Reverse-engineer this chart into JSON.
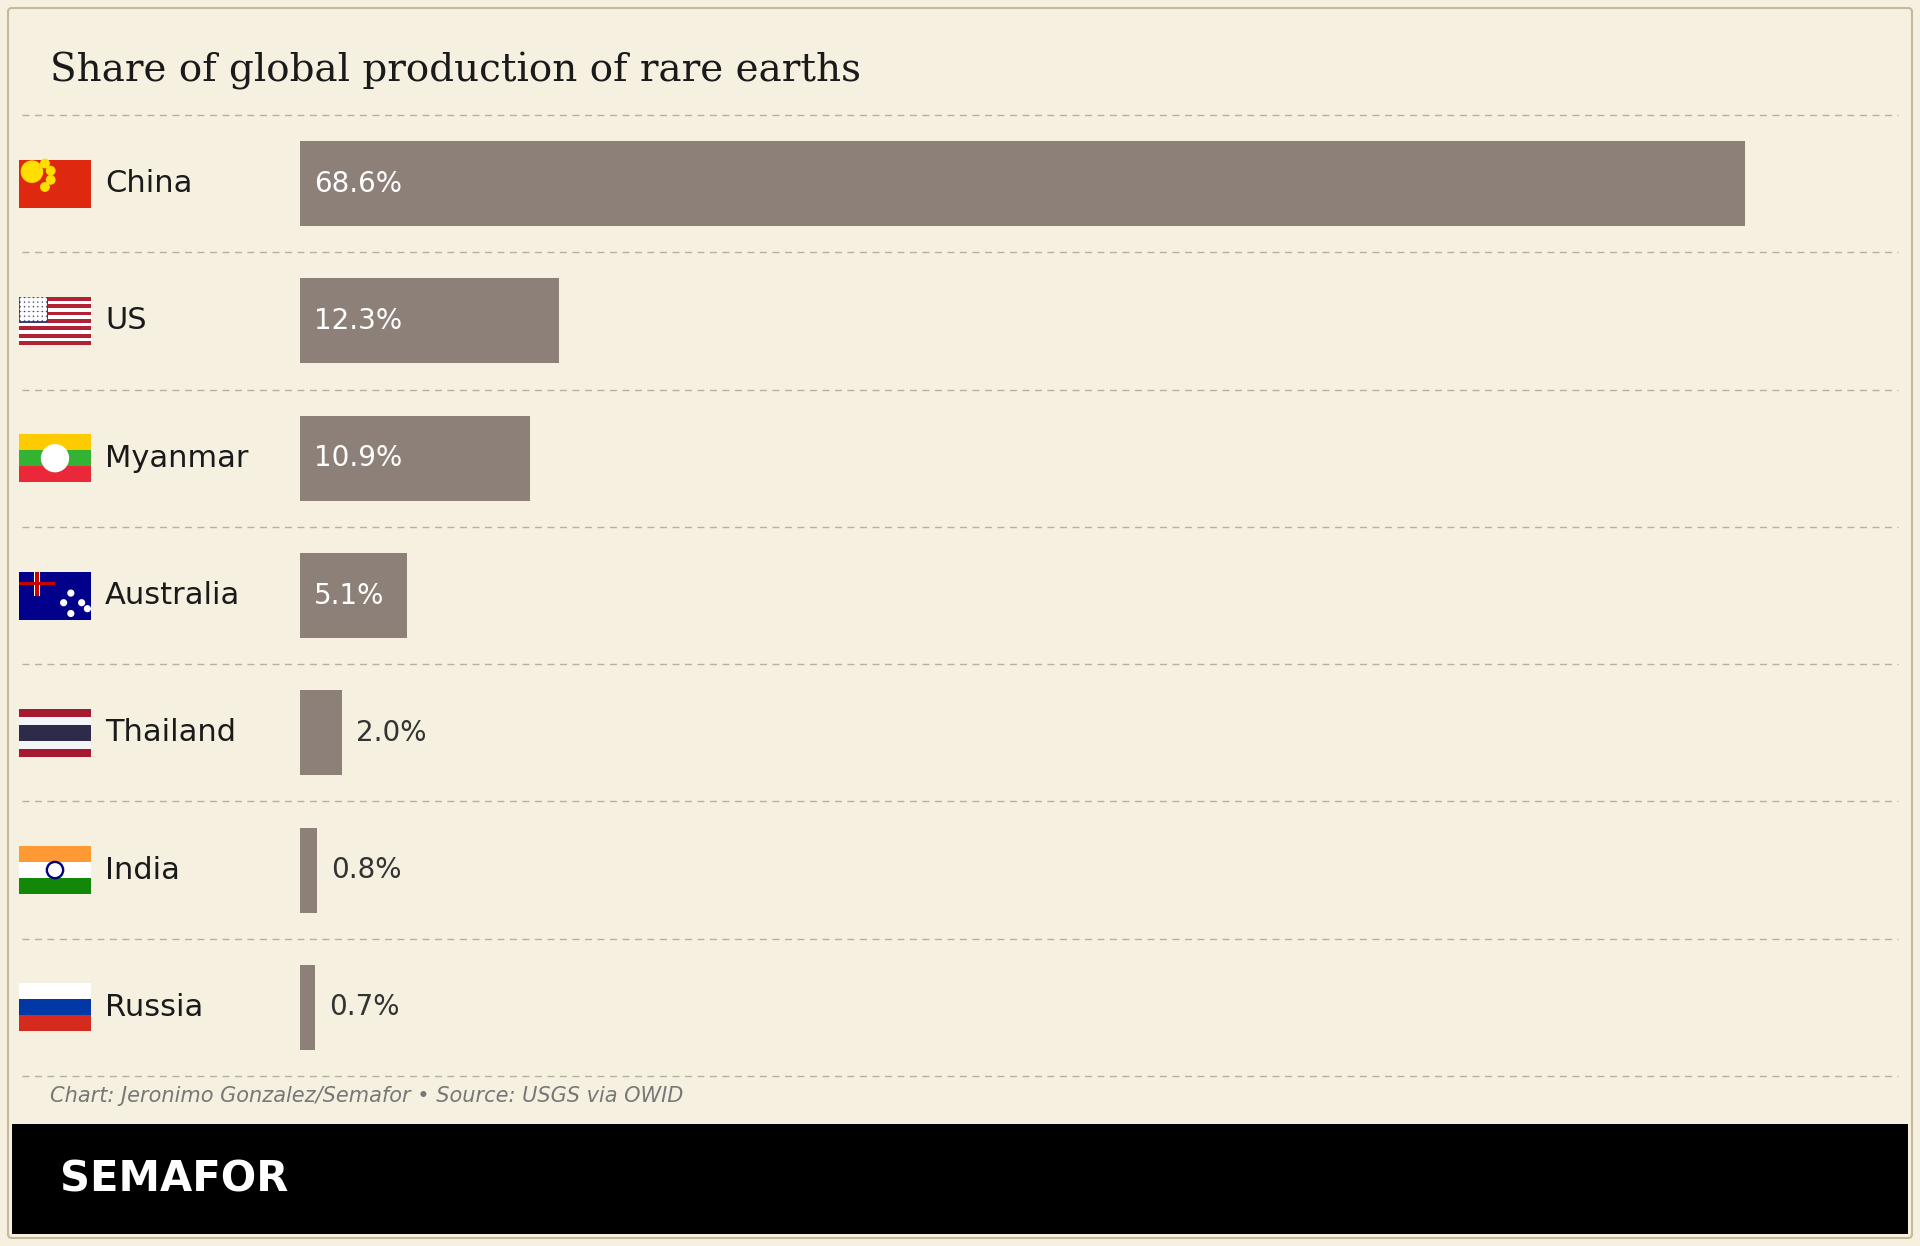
{
  "title": "Share of global production of rare earths",
  "countries": [
    "China",
    "US",
    "Myanmar",
    "Australia",
    "Thailand",
    "India",
    "Russia"
  ],
  "values": [
    68.6,
    12.3,
    10.9,
    5.1,
    2.0,
    0.8,
    0.7
  ],
  "labels": [
    "68.6%",
    "12.3%",
    "10.9%",
    "5.1%",
    "2.0%",
    "0.8%",
    "0.7%"
  ],
  "bar_color": "#8c8078",
  "background_color": "#f5f0e0",
  "border_color": "#c8b89a",
  "text_color": "#1a1a1a",
  "label_inside_color": "#ffffff",
  "label_outside_color": "#333333",
  "source_text": "Chart: Jeronimo Gonzalez/Semafor • Source: USGS via OWID",
  "semafor_text": "SEMAFOR",
  "title_fontsize": 28,
  "country_fontsize": 22,
  "label_fontsize": 20,
  "source_fontsize": 15,
  "semafor_fontsize": 30,
  "max_val": 75
}
